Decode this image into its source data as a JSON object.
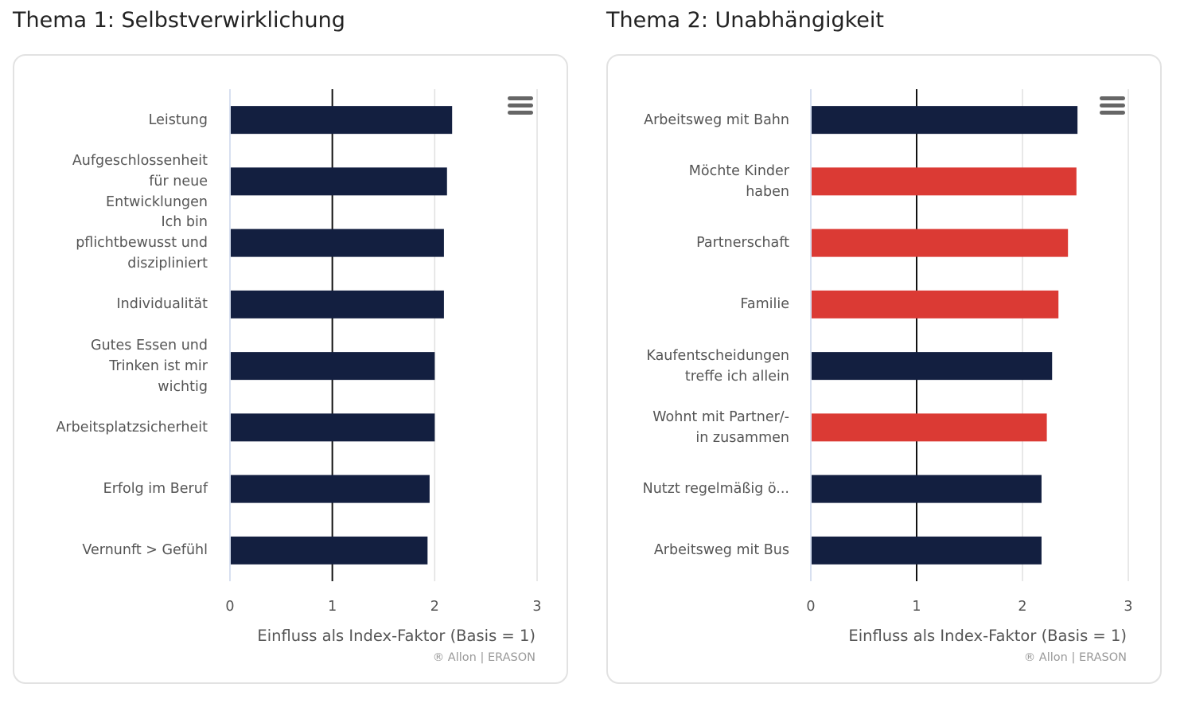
{
  "chart_data": [
    {
      "type": "bar",
      "orientation": "horizontal",
      "title": "Thema 1: Selbstverwirklichung",
      "categories": [
        "Leistung",
        "Aufgeschlossenheit\nfür neue\nEntwicklungen",
        "Ich bin\npflichtbewusst und\ndiszipliniert",
        "Individualität",
        "Gutes Essen und\nTrinken ist mir\nwichtig",
        "Arbeitsplatzsicherheit",
        "Erfolg im Beruf",
        "Vernunft > Gefühl"
      ],
      "values": [
        2.17,
        2.12,
        2.09,
        2.09,
        2.0,
        2.0,
        1.95,
        1.93
      ],
      "bar_colors": [
        "#131f40",
        "#131f40",
        "#131f40",
        "#131f40",
        "#131f40",
        "#131f40",
        "#131f40",
        "#131f40"
      ],
      "xlabel": "Einfluss als Index-Faktor (Basis = 1)",
      "xlim": [
        0,
        3
      ],
      "ticks": [
        "0",
        "1",
        "2",
        "3"
      ],
      "reference_line": 1,
      "credit": "® Allon | ERASON",
      "grid": true
    },
    {
      "type": "bar",
      "orientation": "horizontal",
      "title": "Thema 2: Unabhängigkeit",
      "categories": [
        "Arbeitsweg mit Bahn",
        "Möchte Kinder\nhaben",
        "Partnerschaft",
        "Familie",
        "Kaufentscheidungen\ntreffe ich allein",
        "Wohnt mit Partner/-\nin zusammen",
        "Nutzt regelmäßig ö...",
        "Arbeitsweg mit Bus"
      ],
      "values": [
        2.52,
        2.51,
        2.43,
        2.34,
        2.28,
        2.23,
        2.18,
        2.18
      ],
      "bar_colors": [
        "#131f40",
        "#db3a34",
        "#db3a34",
        "#db3a34",
        "#131f40",
        "#db3a34",
        "#131f40",
        "#131f40"
      ],
      "xlabel": "Einfluss als Index-Faktor (Basis = 1)",
      "xlim": [
        0,
        3
      ],
      "ticks": [
        "0",
        "1",
        "2",
        "3"
      ],
      "reference_line": 1,
      "credit": "® Allon | ERASON",
      "grid": true
    }
  ],
  "icons": {
    "menu": "hamburger-menu-icon"
  }
}
